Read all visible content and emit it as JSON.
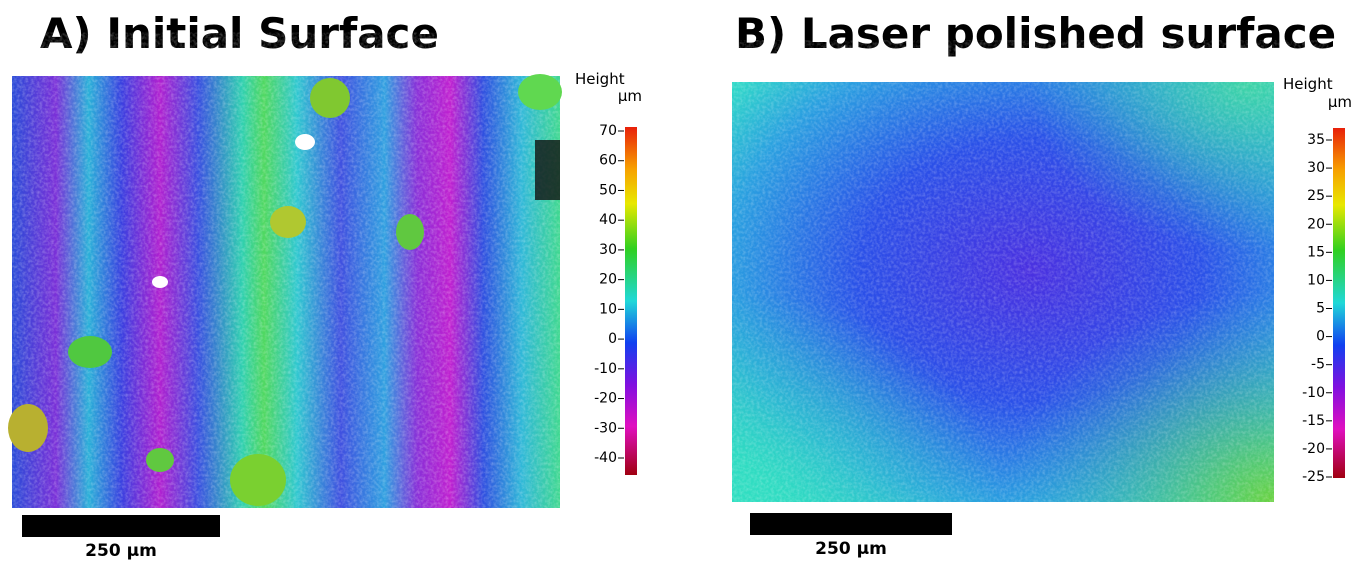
{
  "panels": [
    {
      "title": "A) Initial Surface",
      "colorbar_label": "Height",
      "unit": "µm",
      "ticks": [
        70,
        60,
        50,
        40,
        30,
        20,
        10,
        0,
        -10,
        -20,
        -30,
        -40
      ],
      "scale_bar": "250 µm"
    },
    {
      "title": "B) Laser polished surface",
      "colorbar_label": "Height",
      "unit": "µm",
      "ticks": [
        35,
        30,
        25,
        20,
        15,
        10,
        5,
        0,
        -5,
        -10,
        -15,
        -20,
        -25
      ],
      "scale_bar": "250 µm"
    }
  ]
}
